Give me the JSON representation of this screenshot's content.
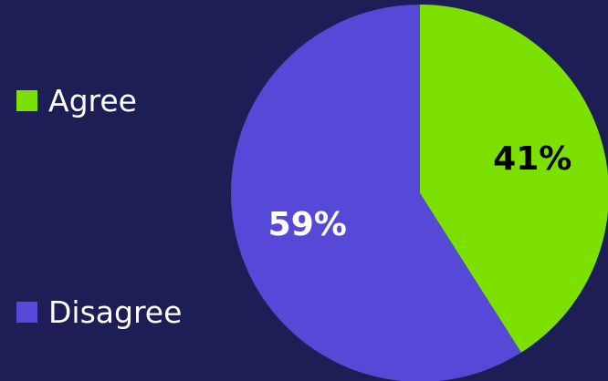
{
  "chart_data": {
    "type": "pie",
    "title": "",
    "legend_position": "left",
    "slices": [
      {
        "label": "Agree",
        "value": 41,
        "display": "41%",
        "color": "#7ce000",
        "label_color": "#000000"
      },
      {
        "label": "Disagree",
        "value": 59,
        "display": "59%",
        "color": "#5649d8",
        "label_color": "#ffffff"
      }
    ]
  },
  "colors": {
    "background": "#1e1e56"
  }
}
